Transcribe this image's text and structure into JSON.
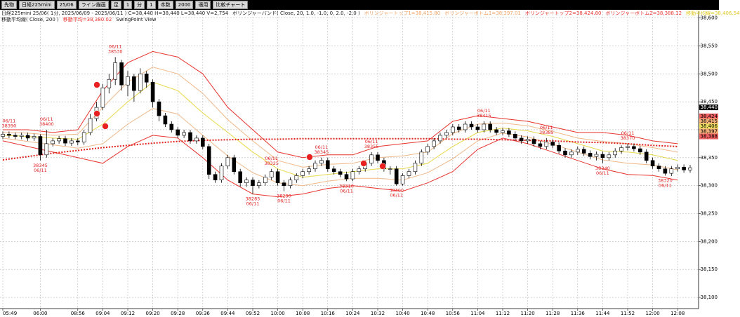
{
  "toolbar": [
    "先物",
    "日経225mini",
    "25/06",
    "ライン描画",
    "足",
    "1",
    "分",
    "1",
    "本数",
    "2000",
    "適用",
    "比較チャート"
  ],
  "header": {
    "line1": [
      {
        "text": "日経225mini 25/06( 1分, 2025/06/09 - 2025/06/11 ) C=38,440 H=38,440 L=38,440 V=2,754",
        "color": "#222222"
      },
      {
        "text": "ボリンジャーバンド( Close, 20, 1.0, -1.0, 0, 2.0, -2.0 )",
        "color": "#222222"
      },
      {
        "text": "ボリンジャートップ1=38,415.80",
        "color": "#f0a060"
      },
      {
        "text": "ボリンジャーボトム1=38,397.01",
        "color": "#f0a060"
      },
      {
        "text": "ボリンジャートップ2=38,424.80",
        "color": "#e8342e"
      },
      {
        "text": "ボリンジャーボトム2=38,388.12",
        "color": "#e8342e"
      },
      {
        "text": "移動平均線=38,406.54",
        "color": "#e0c820"
      }
    ],
    "line2": [
      {
        "text": "移動平均線( Close, 200 )",
        "color": "#222222"
      },
      {
        "text": "移動平均=38,380.02",
        "color": "#e8342e"
      },
      {
        "text": "SwingPoint View",
        "color": "#222222"
      }
    ]
  },
  "chart_data": {
    "type": "candlestick",
    "categories": [
      "05:49",
      null,
      null,
      null,
      null,
      null,
      "06:00",
      null,
      null,
      null,
      null,
      null,
      "08:56",
      null,
      null,
      null,
      "09:04",
      null,
      null,
      null,
      "09:12",
      null,
      null,
      null,
      "09:20",
      null,
      null,
      null,
      "09:28",
      null,
      null,
      null,
      "09:36",
      null,
      null,
      null,
      "09:44",
      null,
      null,
      null,
      "09:52",
      null,
      null,
      null,
      "10:00",
      null,
      null,
      null,
      "10:08",
      null,
      null,
      null,
      "10:16",
      null,
      null,
      null,
      "10:24",
      null,
      null,
      null,
      "10:32",
      null,
      null,
      null,
      "10:40",
      null,
      null,
      null,
      "10:48",
      null,
      null,
      null,
      "10:56",
      null,
      null,
      null,
      "11:04",
      null,
      null,
      null,
      "11:12",
      null,
      null,
      null,
      "11:20",
      null,
      null,
      null,
      "11:28",
      null,
      null,
      null,
      "11:36",
      null,
      null,
      null,
      "11:44",
      null,
      null,
      null,
      "11:52",
      null,
      null,
      null,
      "12:00",
      null,
      null,
      null,
      "12:08",
      null,
      null
    ],
    "open": [
      38388,
      38392,
      38390,
      38388,
      38390,
      38385,
      38388,
      38355,
      38375,
      38380,
      38384,
      38376,
      38380,
      38378,
      38395,
      38420,
      38440,
      38475,
      38490,
      38520,
      38480,
      38495,
      38470,
      38500,
      38485,
      38450,
      38425,
      38410,
      38400,
      38390,
      38395,
      38380,
      38385,
      38370,
      38320,
      38310,
      38335,
      38350,
      38325,
      38305,
      38310,
      38300,
      38305,
      38315,
      38325,
      38305,
      38300,
      38310,
      38318,
      38325,
      38330,
      38340,
      38345,
      38330,
      38325,
      38320,
      38312,
      38325,
      38330,
      38340,
      38355,
      38345,
      38330,
      38330,
      38303,
      38318,
      38325,
      38340,
      38360,
      38370,
      38380,
      38390,
      38395,
      38405,
      38400,
      38410,
      38405,
      38400,
      38410,
      38400,
      38395,
      38398,
      38392,
      38385,
      38380,
      38383,
      38375,
      38370,
      38378,
      38372,
      38362,
      38355,
      38360,
      38365,
      38358,
      38352,
      38356,
      38350,
      38355,
      38362,
      38368,
      38370,
      38366,
      38360,
      38345,
      38335,
      38330,
      38322,
      38330,
      38333,
      38328
    ],
    "high": [
      38397,
      38397,
      38395,
      38395,
      38395,
      38393,
      38392,
      38400,
      38385,
      38389,
      38389,
      38385,
      38385,
      38400,
      38428,
      38450,
      38482,
      38500,
      38530,
      38525,
      38505,
      38500,
      38510,
      38505,
      38490,
      38455,
      38430,
      38415,
      38405,
      38400,
      38400,
      38390,
      38390,
      38375,
      38325,
      38340,
      38355,
      38355,
      38330,
      38315,
      38315,
      38310,
      38320,
      38330,
      38330,
      38310,
      38315,
      38322,
      38330,
      38335,
      38345,
      38350,
      38350,
      38335,
      38330,
      38325,
      38330,
      38335,
      38345,
      38360,
      38360,
      38350,
      38335,
      38335,
      38322,
      38330,
      38345,
      38365,
      38375,
      38385,
      38395,
      38400,
      38410,
      38410,
      38415,
      38415,
      38410,
      38415,
      38415,
      38405,
      38403,
      38403,
      38397,
      38390,
      38388,
      38388,
      38380,
      38385,
      38383,
      38377,
      38367,
      38365,
      38370,
      38370,
      38363,
      38361,
      38361,
      38360,
      38367,
      38372,
      38375,
      38375,
      38371,
      38365,
      38350,
      38340,
      38335,
      38335,
      38338,
      38338,
      38337
    ],
    "low": [
      38383,
      38385,
      38383,
      38383,
      38380,
      38380,
      38345,
      38350,
      38370,
      38375,
      38371,
      38371,
      38372,
      38373,
      38390,
      38415,
      38435,
      38465,
      38480,
      38470,
      38460,
      38450,
      38465,
      38475,
      38440,
      38415,
      38405,
      38395,
      38385,
      38385,
      38375,
      38375,
      38365,
      38312,
      38305,
      38305,
      38330,
      38320,
      38298,
      38298,
      38285,
      38295,
      38300,
      38310,
      38300,
      38290,
      38295,
      38305,
      38313,
      38320,
      38325,
      38335,
      38325,
      38320,
      38315,
      38308,
      38308,
      38320,
      38325,
      38335,
      38340,
      38325,
      38320,
      38300,
      38300,
      38313,
      38320,
      38335,
      38355,
      38365,
      38375,
      38385,
      38390,
      38395,
      38395,
      38400,
      38395,
      38395,
      38395,
      38390,
      38390,
      38387,
      38380,
      38375,
      38375,
      38370,
      38365,
      38365,
      38367,
      38357,
      38350,
      38350,
      38355,
      38353,
      38347,
      38345,
      38340,
      38345,
      38350,
      38357,
      38363,
      38361,
      38355,
      38340,
      38330,
      38325,
      38318,
      38317,
      38325,
      38323,
      38323
    ],
    "close": [
      38392,
      38390,
      38388,
      38390,
      38385,
      38388,
      38355,
      38375,
      38380,
      38384,
      38376,
      38380,
      38378,
      38395,
      38420,
      38440,
      38475,
      38490,
      38520,
      38480,
      38495,
      38470,
      38500,
      38485,
      38450,
      38425,
      38410,
      38400,
      38390,
      38395,
      38380,
      38385,
      38370,
      38320,
      38310,
      38335,
      38350,
      38325,
      38305,
      38310,
      38300,
      38305,
      38315,
      38325,
      38305,
      38300,
      38310,
      38318,
      38325,
      38330,
      38340,
      38345,
      38330,
      38325,
      38320,
      38312,
      38325,
      38330,
      38340,
      38355,
      38345,
      38330,
      38330,
      38303,
      38318,
      38325,
      38340,
      38360,
      38370,
      38380,
      38390,
      38395,
      38405,
      38400,
      38410,
      38405,
      38400,
      38410,
      38400,
      38395,
      38398,
      38392,
      38385,
      38380,
      38383,
      38375,
      38370,
      38378,
      38372,
      38362,
      38355,
      38360,
      38365,
      38358,
      38352,
      38356,
      38350,
      38355,
      38362,
      38368,
      38370,
      38366,
      38360,
      38345,
      38335,
      38330,
      38322,
      38330,
      38333,
      38328,
      38332
    ],
    "up_color": "#ffffff",
    "down_color": "#000000",
    "series": [
      {
        "color": "#e8342e",
        "width": 1,
        "dash": false,
        "x": [
          0,
          4,
          8,
          12,
          16,
          20,
          24,
          28,
          32,
          36,
          40,
          44,
          48,
          52,
          56,
          60,
          64,
          68,
          72,
          76,
          80,
          84,
          88,
          92,
          96,
          100,
          104,
          108
        ],
        "values": [
          38400,
          38400,
          38395,
          38400,
          38470,
          38520,
          38540,
          38530,
          38500,
          38440,
          38400,
          38360,
          38350,
          38355,
          38355,
          38370,
          38375,
          38380,
          38415,
          38425,
          38420,
          38415,
          38405,
          38395,
          38395,
          38390,
          38380,
          38375
        ]
      },
      {
        "color": "#f0b888",
        "width": 1,
        "dash": false,
        "x": [
          0,
          4,
          8,
          12,
          16,
          20,
          24,
          28,
          32,
          36,
          40,
          44,
          48,
          52,
          56,
          60,
          64,
          68,
          72,
          76,
          80,
          84,
          88,
          92,
          96,
          100,
          104,
          108
        ],
        "values": [
          38395,
          38394,
          38390,
          38392,
          38440,
          38485,
          38512,
          38500,
          38465,
          38418,
          38380,
          38345,
          38333,
          38338,
          38340,
          38350,
          38353,
          38360,
          38393,
          38410,
          38412,
          38407,
          38397,
          38385,
          38379,
          38375,
          38368,
          38360
        ]
      },
      {
        "color": "#e8d84a",
        "width": 1,
        "dash": false,
        "x": [
          0,
          4,
          8,
          12,
          16,
          20,
          24,
          28,
          32,
          36,
          40,
          44,
          48,
          52,
          56,
          60,
          64,
          68,
          72,
          76,
          80,
          84,
          88,
          92,
          96,
          100,
          104,
          108
        ],
        "values": [
          38390,
          38388,
          38385,
          38383,
          38410,
          38450,
          38485,
          38470,
          38430,
          38395,
          38360,
          38330,
          38315,
          38320,
          38325,
          38330,
          38330,
          38340,
          38370,
          38395,
          38403,
          38398,
          38388,
          38375,
          38362,
          38360,
          38355,
          38345
        ]
      },
      {
        "color": "#f0b888",
        "width": 1,
        "dash": false,
        "x": [
          0,
          4,
          8,
          12,
          16,
          20,
          24,
          28,
          32,
          36,
          40,
          44,
          48,
          52,
          56,
          60,
          64,
          68,
          72,
          76,
          80,
          84,
          88,
          92,
          96,
          100,
          104,
          108
        ],
        "values": [
          38385,
          38379,
          38373,
          38367,
          38375,
          38410,
          38438,
          38428,
          38390,
          38353,
          38323,
          38305,
          38300,
          38308,
          38313,
          38313,
          38310,
          38323,
          38348,
          38380,
          38394,
          38387,
          38374,
          38360,
          38346,
          38340,
          38337,
          38328
        ]
      },
      {
        "color": "#e8342e",
        "width": 1,
        "dash": false,
        "x": [
          0,
          4,
          8,
          12,
          16,
          20,
          24,
          28,
          32,
          36,
          40,
          44,
          48,
          52,
          56,
          60,
          64,
          68,
          72,
          76,
          80,
          84,
          88,
          92,
          96,
          100,
          104,
          108
        ],
        "values": [
          38380,
          38370,
          38360,
          38350,
          38340,
          38370,
          38390,
          38385,
          38350,
          38310,
          38285,
          38280,
          38285,
          38295,
          38300,
          38295,
          38290,
          38305,
          38325,
          38365,
          38385,
          38375,
          38360,
          38345,
          38330,
          38320,
          38318,
          38310
        ]
      },
      {
        "color": "#e0201b",
        "width": 2,
        "dash": true,
        "x": [
          0,
          4,
          8,
          12,
          16,
          20,
          24,
          28,
          32,
          36,
          40,
          44,
          48,
          52,
          56,
          60,
          64,
          68,
          72,
          76,
          80,
          84,
          88,
          92,
          96,
          100,
          104,
          108
        ],
        "values": [
          38346,
          38352,
          38358,
          38363,
          38368,
          38372,
          38376,
          38379,
          38381,
          38382,
          38383,
          38383,
          38384,
          38384,
          38384,
          38384,
          38384,
          38384,
          38383,
          38383,
          38382,
          38381,
          38380,
          38378,
          38377,
          38375,
          38372,
          38370
        ]
      }
    ],
    "ylim": [
      38080,
      38612
    ],
    "yticks": [
      {
        "value": 38100,
        "label": "38,100"
      },
      {
        "value": 38150,
        "label": "38,150"
      },
      {
        "value": 38200,
        "label": "38,200"
      },
      {
        "value": 38250,
        "label": "38,250"
      },
      {
        "value": 38300,
        "label": "38,300"
      },
      {
        "value": 38350,
        "label": "38,350"
      },
      {
        "value": 38400,
        "label": "38,400"
      },
      {
        "value": 38450,
        "label": "38,450"
      },
      {
        "value": 38500,
        "label": "38,500"
      },
      {
        "value": 38550,
        "label": "38,550"
      },
      {
        "value": 38600,
        "label": "38,600"
      }
    ],
    "grid": true,
    "price_tags": [
      {
        "value": 38440,
        "label": "38,440",
        "color": "#000000"
      },
      {
        "value": 38424,
        "label": "38,424",
        "color": "#f06060"
      },
      {
        "value": 38415,
        "label": "38,415",
        "color": "#f5b07a"
      },
      {
        "value": 38406,
        "label": "38,406",
        "color": "#f0e060"
      },
      {
        "value": 38397,
        "label": "38,397",
        "color": "#f5b07a"
      },
      {
        "value": 38388,
        "label": "38,388",
        "color": "#f06060"
      }
    ],
    "annotation_color": "#e02020",
    "annotations": [
      {
        "date": "06/11",
        "price": 38390
      },
      {
        "date": "06/11",
        "price": 38400
      },
      {
        "date": "06/11",
        "price": 38345
      },
      {
        "date": "06/11",
        "price": 38530
      },
      {
        "date": "06/11",
        "price": 38285
      },
      {
        "date": "06/11",
        "price": 38325
      },
      {
        "date": "06/11",
        "price": 38290
      },
      {
        "date": "06/11",
        "price": 38345
      },
      {
        "date": "06/11",
        "price": 38310
      },
      {
        "date": "06/11",
        "price": 38355
      },
      {
        "date": "06/11",
        "price": 38300
      },
      {
        "date": "06/11",
        "price": 38415
      },
      {
        "date": "06/11",
        "price": 38385
      },
      {
        "date": "06/11",
        "price": 38340
      },
      {
        "date": "06/11",
        "price": 38370
      },
      {
        "date": "06/11",
        "price": 38320
      }
    ]
  }
}
